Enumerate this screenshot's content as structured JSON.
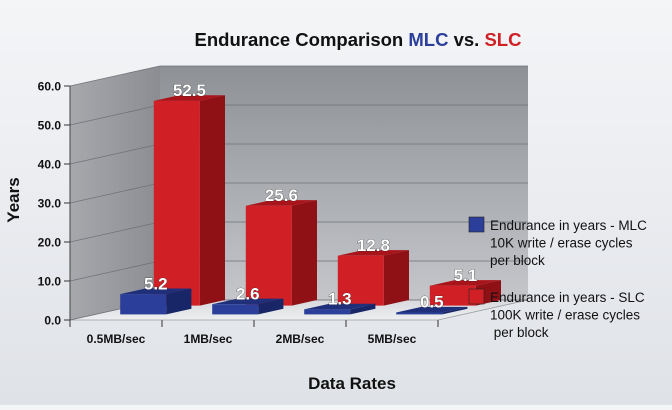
{
  "chart_data": {
    "type": "bar",
    "title_parts": [
      {
        "text": "Endurance Comparison ",
        "color": "#111111"
      },
      {
        "text": "MLC",
        "color": "#2b3f9a"
      },
      {
        "text": " vs. ",
        "color": "#111111"
      },
      {
        "text": "SLC",
        "color": "#d01f25"
      }
    ],
    "xlabel": "Data Rates",
    "ylabel": "Years",
    "ylim": [
      0,
      60
    ],
    "yticks": [
      "0.0",
      "10.0",
      "20.0",
      "30.0",
      "40.0",
      "50.0",
      "60.0"
    ],
    "categories": [
      "0.5MB/sec",
      "1MB/sec",
      "2MB/sec",
      "5MB/sec"
    ],
    "series": [
      {
        "name_lines": [
          "Endurance in years - MLC",
          "10K write / erase cycles",
          "per block"
        ],
        "color": "#2b3f9a",
        "values": [
          5.2,
          2.6,
          1.3,
          0.5
        ],
        "labels": [
          "5.2",
          "2.6",
          "1.3",
          "0.5"
        ]
      },
      {
        "name_lines": [
          "Endurance in years - SLC",
          "100K write / erase cycles",
          " per block"
        ],
        "color": "#d01f25",
        "values": [
          52.5,
          25.6,
          12.8,
          5.1
        ],
        "labels": [
          "52.5",
          "25.6",
          "12.8",
          "5.1"
        ]
      }
    ],
    "legend": "right",
    "grid": true
  }
}
